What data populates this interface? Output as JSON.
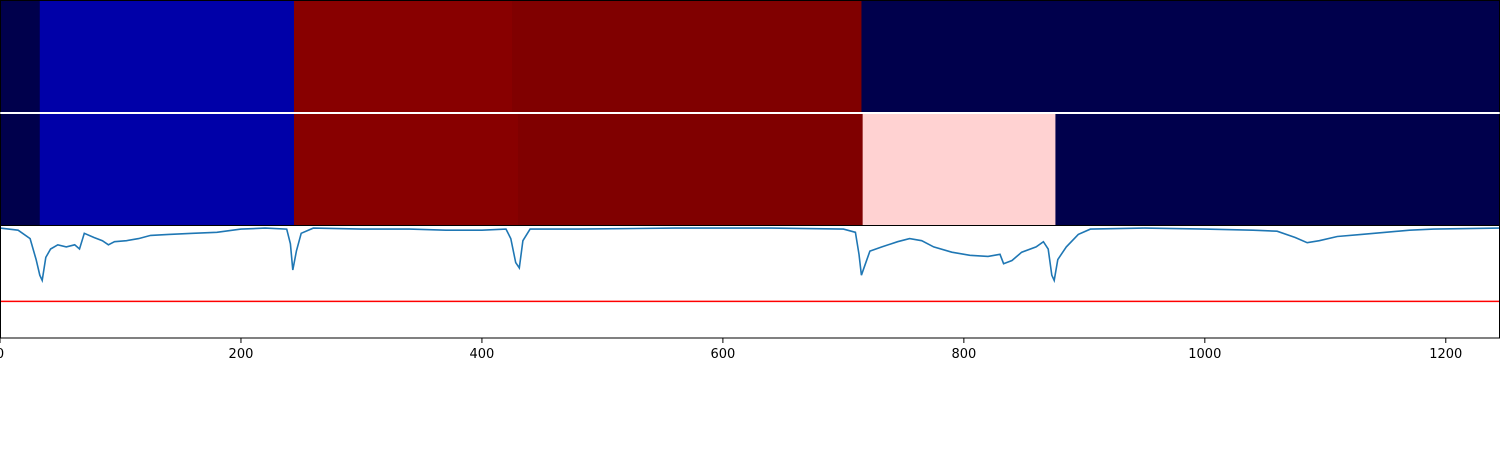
{
  "chart_data": {
    "type": "heatmap",
    "xlim": [
      0,
      1245
    ],
    "x_ticks": [
      "0",
      "200",
      "400",
      "600",
      "800",
      "1000",
      "1200"
    ],
    "x_tick_values": [
      0,
      200,
      400,
      600,
      800,
      1000,
      1200
    ],
    "colors": {
      "dark_navy": "#00004c",
      "blue": "#0000a8",
      "dark_red": "#880000",
      "maroon": "#800000",
      "light_pink": "#ffd2d2",
      "signal_line": "#1f77b4",
      "threshold_line": "#ff0000"
    },
    "rows": [
      {
        "segments": [
          {
            "start": 0,
            "end": 33,
            "color": "dark_navy"
          },
          {
            "start": 33,
            "end": 244,
            "color": "blue"
          },
          {
            "start": 244,
            "end": 425,
            "color": "dark_red"
          },
          {
            "start": 425,
            "end": 715,
            "color": "maroon"
          },
          {
            "start": 715,
            "end": 1245,
            "color": "dark_navy"
          }
        ]
      },
      {
        "segments": [
          {
            "start": 0,
            "end": 33,
            "color": "dark_navy"
          },
          {
            "start": 33,
            "end": 244,
            "color": "blue"
          },
          {
            "start": 244,
            "end": 430,
            "color": "dark_red"
          },
          {
            "start": 430,
            "end": 716,
            "color": "maroon"
          },
          {
            "start": 716,
            "end": 876,
            "color": "light_pink"
          },
          {
            "start": 876,
            "end": 1245,
            "color": "dark_navy"
          }
        ]
      }
    ],
    "signal": {
      "ylim": [
        -1.05,
        0.02
      ],
      "threshold": -0.7,
      "points": [
        [
          0,
          0.0
        ],
        [
          15,
          -0.02
        ],
        [
          25,
          -0.1
        ],
        [
          30,
          -0.3
        ],
        [
          33,
          -0.45
        ],
        [
          35,
          -0.5
        ],
        [
          38,
          -0.28
        ],
        [
          42,
          -0.2
        ],
        [
          48,
          -0.16
        ],
        [
          55,
          -0.18
        ],
        [
          62,
          -0.16
        ],
        [
          66,
          -0.2
        ],
        [
          70,
          -0.05
        ],
        [
          78,
          -0.09
        ],
        [
          85,
          -0.12
        ],
        [
          90,
          -0.16
        ],
        [
          95,
          -0.13
        ],
        [
          105,
          -0.12
        ],
        [
          115,
          -0.1
        ],
        [
          125,
          -0.07
        ],
        [
          140,
          -0.06
        ],
        [
          160,
          -0.05
        ],
        [
          180,
          -0.04
        ],
        [
          200,
          -0.01
        ],
        [
          220,
          0.0
        ],
        [
          238,
          -0.01
        ],
        [
          241,
          -0.15
        ],
        [
          243,
          -0.4
        ],
        [
          246,
          -0.22
        ],
        [
          250,
          -0.05
        ],
        [
          260,
          0.0
        ],
        [
          300,
          -0.01
        ],
        [
          340,
          -0.01
        ],
        [
          370,
          -0.02
        ],
        [
          400,
          -0.02
        ],
        [
          420,
          -0.01
        ],
        [
          424,
          -0.1
        ],
        [
          428,
          -0.33
        ],
        [
          431,
          -0.38
        ],
        [
          434,
          -0.12
        ],
        [
          440,
          -0.01
        ],
        [
          480,
          -0.01
        ],
        [
          560,
          0.0
        ],
        [
          640,
          0.0
        ],
        [
          700,
          -0.01
        ],
        [
          710,
          -0.04
        ],
        [
          713,
          -0.25
        ],
        [
          715,
          -0.45
        ],
        [
          718,
          -0.35
        ],
        [
          722,
          -0.22
        ],
        [
          732,
          -0.18
        ],
        [
          745,
          -0.13
        ],
        [
          755,
          -0.1
        ],
        [
          765,
          -0.12
        ],
        [
          775,
          -0.18
        ],
        [
          790,
          -0.23
        ],
        [
          805,
          -0.26
        ],
        [
          820,
          -0.27
        ],
        [
          830,
          -0.25
        ],
        [
          833,
          -0.34
        ],
        [
          840,
          -0.31
        ],
        [
          848,
          -0.23
        ],
        [
          860,
          -0.18
        ],
        [
          866,
          -0.13
        ],
        [
          870,
          -0.2
        ],
        [
          873,
          -0.45
        ],
        [
          875,
          -0.5
        ],
        [
          878,
          -0.3
        ],
        [
          885,
          -0.18
        ],
        [
          895,
          -0.06
        ],
        [
          905,
          -0.01
        ],
        [
          950,
          0.0
        ],
        [
          1000,
          -0.01
        ],
        [
          1040,
          -0.02
        ],
        [
          1060,
          -0.03
        ],
        [
          1075,
          -0.09
        ],
        [
          1085,
          -0.14
        ],
        [
          1095,
          -0.12
        ],
        [
          1110,
          -0.08
        ],
        [
          1130,
          -0.06
        ],
        [
          1150,
          -0.04
        ],
        [
          1170,
          -0.02
        ],
        [
          1190,
          -0.01
        ],
        [
          1245,
          0.0
        ]
      ]
    }
  }
}
